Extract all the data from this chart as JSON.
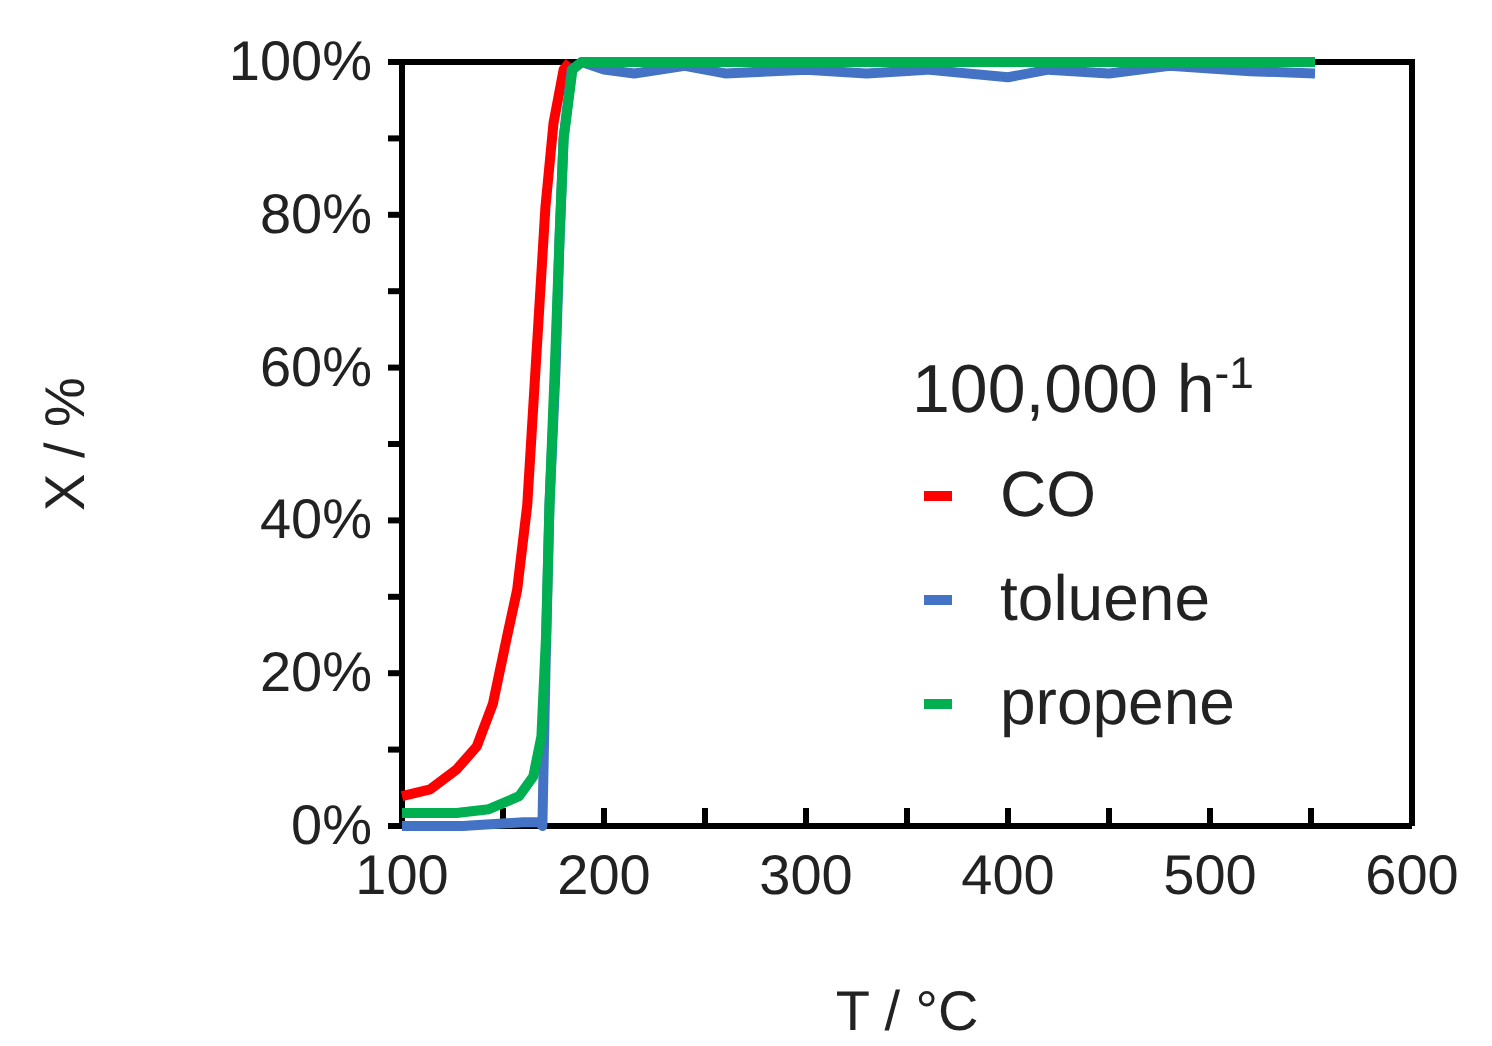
{
  "chart_data": {
    "type": "line",
    "xlabel": "T / °C",
    "ylabel": "X / %",
    "legend_title": "100,000 h$^{-1}$",
    "legend": "bottom right",
    "grid": false,
    "xlim": [
      100,
      600
    ],
    "xticks": [
      100,
      {
        "value": 150,
        "label": null
      },
      200,
      {
        "value": 250,
        "label": null
      },
      300,
      {
        "value": 350,
        "label": null
      },
      400,
      {
        "value": 450,
        "label": null
      },
      500,
      {
        "value": 550,
        "label": null
      },
      600
    ],
    "ylim": [
      0,
      100
    ],
    "yticks": [
      {
        "value": 0,
        "label": "0%"
      },
      {
        "value": 10,
        "label": null
      },
      {
        "value": 20,
        "label": "20%"
      },
      {
        "value": 30,
        "label": null
      },
      {
        "value": 40,
        "label": "40%"
      },
      {
        "value": 50,
        "label": null
      },
      {
        "value": 60,
        "label": "60%"
      },
      {
        "value": 70,
        "label": null
      },
      {
        "value": 80,
        "label": "80%"
      },
      {
        "value": 90,
        "label": null
      },
      {
        "value": 100,
        "label": "100%"
      }
    ],
    "series": [
      {
        "name": "CO",
        "color": "#ff0000",
        "x": [
          100,
          114,
          127,
          137,
          145,
          152,
          157,
          162,
          165,
          168,
          171,
          175,
          180,
          183
        ],
        "values": [
          3.9,
          4.8,
          7.4,
          10.4,
          16,
          24.8,
          30.9,
          42,
          55,
          68,
          81,
          92,
          99,
          100
        ]
      },
      {
        "name": "toluene",
        "color": "#4472c4",
        "x": [
          100,
          130,
          160,
          168,
          169.5,
          171,
          173,
          176,
          178,
          180,
          184,
          189,
          200,
          215,
          240,
          260,
          300,
          330,
          360,
          400,
          420,
          450,
          480,
          520,
          552
        ],
        "values": [
          0,
          0,
          0.5,
          0.5,
          0,
          20,
          42,
          59.6,
          77,
          90,
          99,
          100,
          99,
          98.5,
          99.5,
          98.5,
          99,
          98.5,
          99,
          98,
          99,
          98.5,
          99.5,
          98.8,
          98.5
        ]
      },
      {
        "name": "propene",
        "color": "#00b050",
        "x": [
          100,
          127,
          143,
          158,
          165,
          169,
          171.3,
          173,
          175.6,
          178,
          180,
          184.4,
          189,
          300,
          400,
          500,
          552
        ],
        "values": [
          1.7,
          1.7,
          2.2,
          3.9,
          6.5,
          11.7,
          24.8,
          42,
          59.6,
          77,
          90,
          99,
          100,
          100,
          100,
          100,
          100
        ]
      }
    ]
  }
}
